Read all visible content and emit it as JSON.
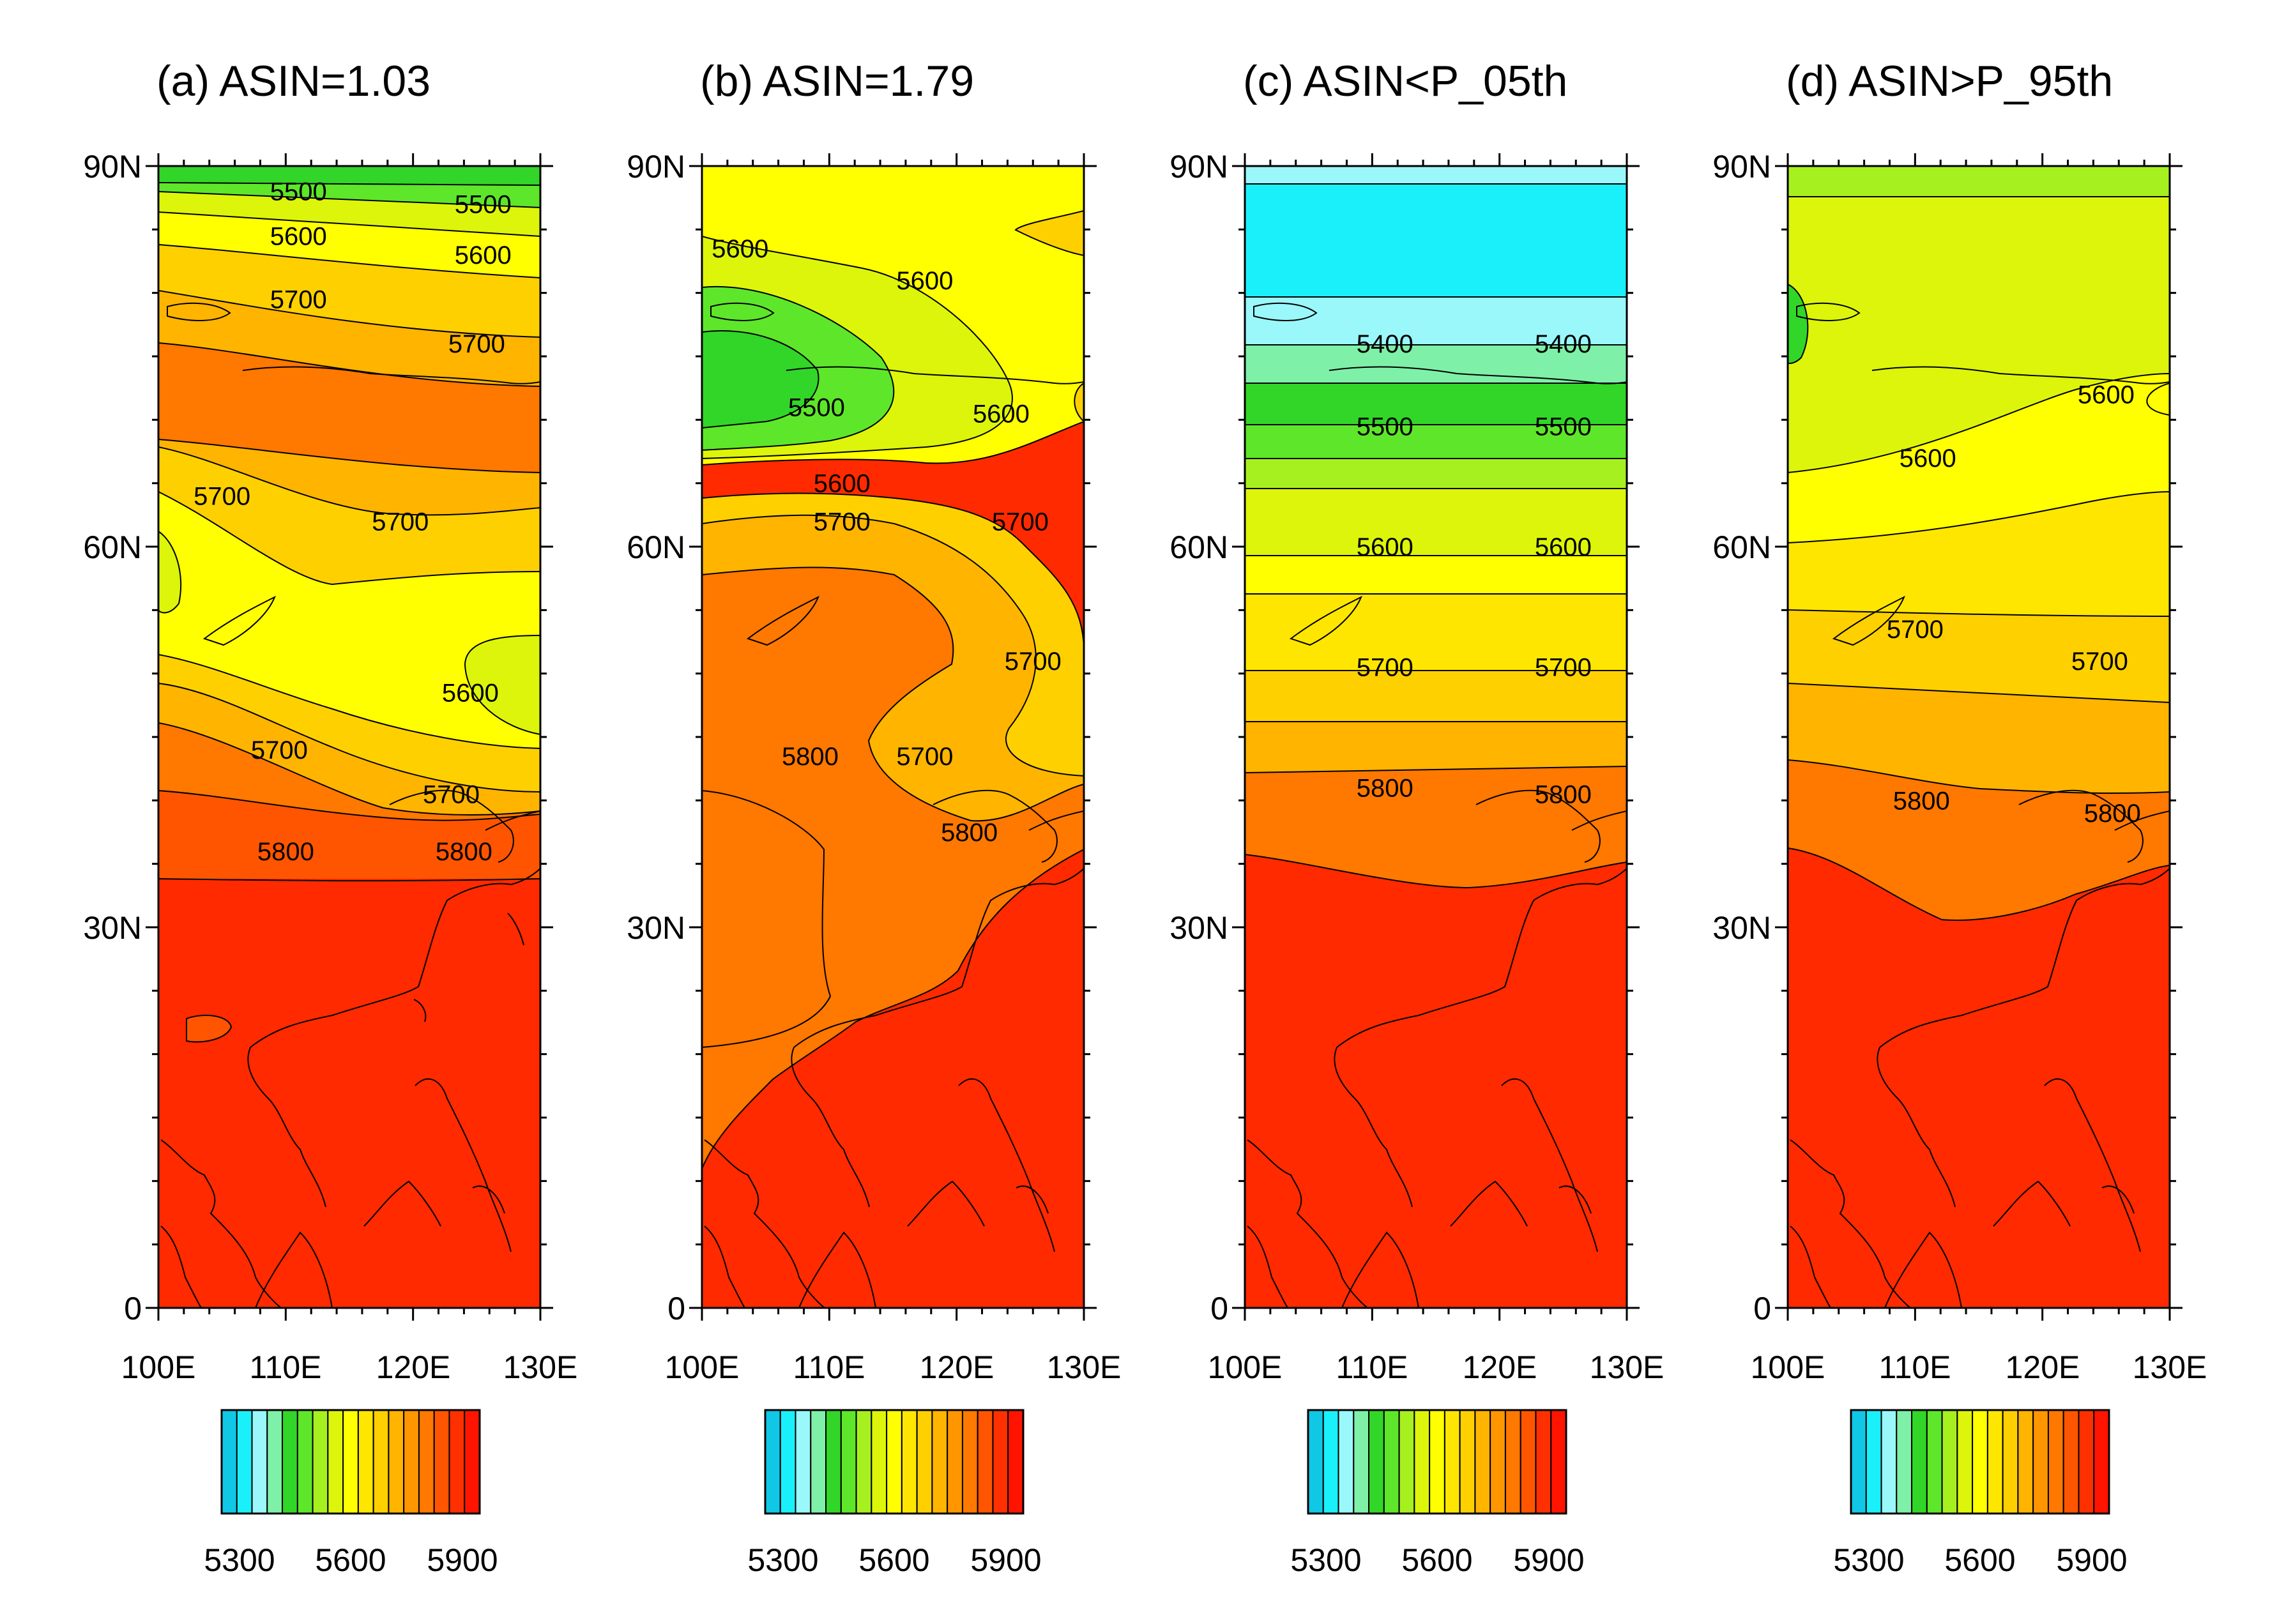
{
  "chart_data": [
    {
      "type": "contour-map",
      "title": "(a) ASIN=1.03",
      "x_ticks": [
        "100E",
        "110E",
        "120E",
        "130E"
      ],
      "y_ticks": [
        "0",
        "30N",
        "60N",
        "90N"
      ],
      "xlim": [
        100,
        130
      ],
      "ylim": [
        0,
        90
      ],
      "contour_labels": [
        {
          "text": "5500",
          "lon": 111,
          "lat": 88
        },
        {
          "text": "5500",
          "lon": 125.5,
          "lat": 87
        },
        {
          "text": "5600",
          "lon": 111,
          "lat": 84.5
        },
        {
          "text": "5600",
          "lon": 125.5,
          "lat": 83
        },
        {
          "text": "5700",
          "lon": 111,
          "lat": 79.5
        },
        {
          "text": "5700",
          "lon": 125,
          "lat": 76
        },
        {
          "text": "5700",
          "lon": 105,
          "lat": 64
        },
        {
          "text": "5700",
          "lon": 119,
          "lat": 62
        },
        {
          "text": "5600",
          "lon": 124.5,
          "lat": 48.5
        },
        {
          "text": "5700",
          "lon": 109.5,
          "lat": 44
        },
        {
          "text": "5700",
          "lon": 123,
          "lat": 40.5
        },
        {
          "text": "5800",
          "lon": 110,
          "lat": 36
        },
        {
          "text": "5800",
          "lon": 124,
          "lat": 36
        }
      ],
      "colorbar": {
        "ticks": [
          "5300",
          "5600",
          "5900"
        ]
      }
    },
    {
      "type": "contour-map",
      "title": "(b) ASIN=1.79",
      "x_ticks": [
        "100E",
        "110E",
        "120E",
        "130E"
      ],
      "y_ticks": [
        "0",
        "30N",
        "60N",
        "90N"
      ],
      "xlim": [
        100,
        130
      ],
      "ylim": [
        0,
        90
      ],
      "contour_labels": [
        {
          "text": "5600",
          "lon": 103,
          "lat": 83.5
        },
        {
          "text": "5600",
          "lon": 117.5,
          "lat": 81
        },
        {
          "text": "5500",
          "lon": 109,
          "lat": 71
        },
        {
          "text": "5600",
          "lon": 123.5,
          "lat": 70.5
        },
        {
          "text": "5600",
          "lon": 111,
          "lat": 65
        },
        {
          "text": "5700",
          "lon": 111,
          "lat": 62
        },
        {
          "text": "5700",
          "lon": 125,
          "lat": 62
        },
        {
          "text": "5700",
          "lon": 126,
          "lat": 51
        },
        {
          "text": "5800",
          "lon": 108.5,
          "lat": 43.5
        },
        {
          "text": "5700",
          "lon": 117.5,
          "lat": 43.5
        },
        {
          "text": "5800",
          "lon": 121,
          "lat": 37.5
        }
      ],
      "colorbar": {
        "ticks": [
          "5300",
          "5600",
          "5900"
        ]
      }
    },
    {
      "type": "contour-map",
      "title": "(c) ASIN<P_05th",
      "x_ticks": [
        "100E",
        "110E",
        "120E",
        "130E"
      ],
      "y_ticks": [
        "0",
        "30N",
        "60N",
        "90N"
      ],
      "xlim": [
        100,
        130
      ],
      "ylim": [
        0,
        90
      ],
      "contour_labels": [
        {
          "text": "5400",
          "lon": 111,
          "lat": 76
        },
        {
          "text": "5400",
          "lon": 125,
          "lat": 76
        },
        {
          "text": "5500",
          "lon": 111,
          "lat": 69.5
        },
        {
          "text": "5500",
          "lon": 125,
          "lat": 69.5
        },
        {
          "text": "5600",
          "lon": 111,
          "lat": 60
        },
        {
          "text": "5600",
          "lon": 125,
          "lat": 60
        },
        {
          "text": "5700",
          "lon": 111,
          "lat": 50.5
        },
        {
          "text": "5700",
          "lon": 125,
          "lat": 50.5
        },
        {
          "text": "5800",
          "lon": 111,
          "lat": 41
        },
        {
          "text": "5800",
          "lon": 125,
          "lat": 40.5
        }
      ],
      "colorbar": {
        "ticks": [
          "5300",
          "5600",
          "5900"
        ]
      }
    },
    {
      "type": "contour-map",
      "title": "(d) ASIN>P_95th",
      "x_ticks": [
        "100E",
        "110E",
        "120E",
        "130E"
      ],
      "y_ticks": [
        "0",
        "30N",
        "60N",
        "90N"
      ],
      "xlim": [
        100,
        130
      ],
      "ylim": [
        0,
        90
      ],
      "contour_labels": [
        {
          "text": "5600",
          "lon": 125,
          "lat": 72
        },
        {
          "text": "5600",
          "lon": 111,
          "lat": 67
        },
        {
          "text": "5700",
          "lon": 110,
          "lat": 53.5
        },
        {
          "text": "5700",
          "lon": 124.5,
          "lat": 51
        },
        {
          "text": "5800",
          "lon": 110.5,
          "lat": 40
        },
        {
          "text": "5800",
          "lon": 125.5,
          "lat": 39
        }
      ],
      "colorbar": {
        "ticks": [
          "5300",
          "5600",
          "5900"
        ]
      }
    }
  ],
  "colorbar_colors": [
    "#10c8e6",
    "#19f0fa",
    "#9af7fa",
    "#7ff0a8",
    "#32d628",
    "#5ee62a",
    "#a7f020",
    "#dcf50a",
    "#ffff00",
    "#ffe600",
    "#ffd000",
    "#ffb400",
    "#ff9600",
    "#ff7800",
    "#ff5500",
    "#ff3000",
    "#ff1400"
  ],
  "level_colors": {
    "5300": "#10c8e6",
    "5350": "#19f0fa",
    "5400": "#9af7fa",
    "5450": "#7ff0a8",
    "5500": "#32d628",
    "5550": "#5ee62a",
    "5600": "#dcf50a",
    "5650": "#ffff00",
    "5700": "#ffd000",
    "5750": "#ffb400",
    "5800": "#ff7800",
    "5850": "#ff5500",
    "5900": "#ff2a00"
  }
}
